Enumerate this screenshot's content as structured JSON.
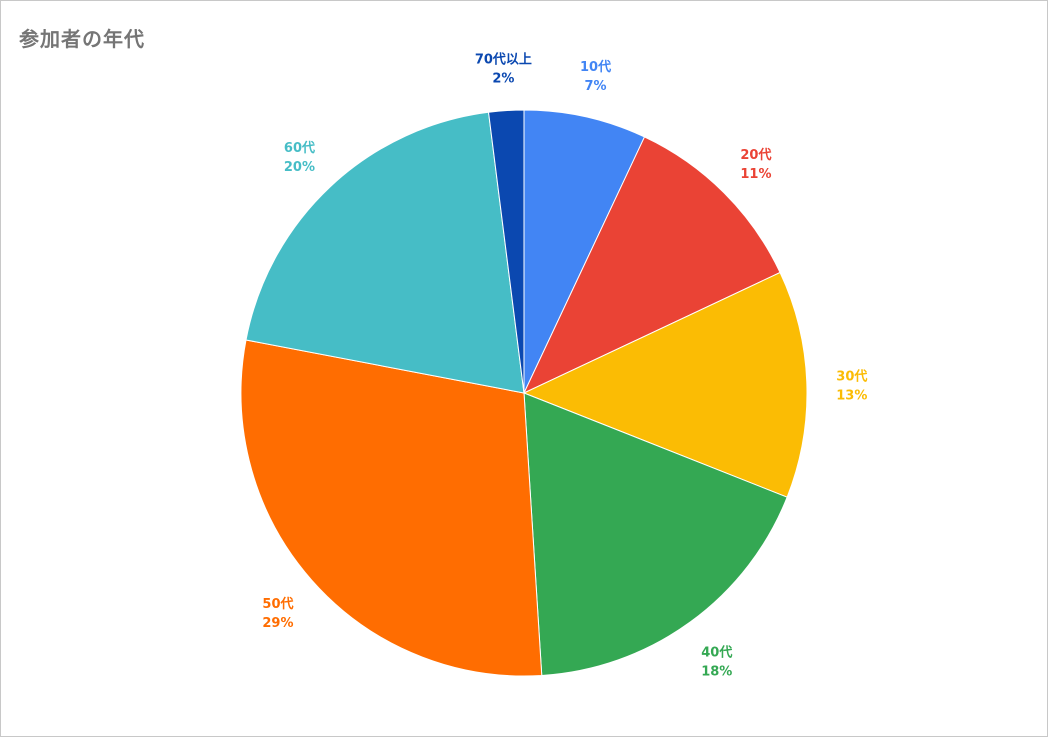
{
  "chart_data": {
    "type": "pie",
    "title": "参加者の年代",
    "slices": [
      {
        "name": "10代",
        "value": 7,
        "label": "7%",
        "color": "#4285f4"
      },
      {
        "name": "20代",
        "value": 11,
        "label": "11%",
        "color": "#ea4335"
      },
      {
        "name": "30代",
        "value": 13,
        "label": "13%",
        "color": "#fbbc04"
      },
      {
        "name": "40代",
        "value": 18,
        "label": "18%",
        "color": "#34a853"
      },
      {
        "name": "50代",
        "value": 29,
        "label": "29%",
        "color": "#ff6d01"
      },
      {
        "name": "60代",
        "value": 20,
        "label": "20%",
        "color": "#46bdc6"
      },
      {
        "name": "70代以上",
        "value": 2,
        "label": "2%",
        "color": "#0b48b0"
      }
    ],
    "label_position": "outside",
    "legend": "none"
  }
}
